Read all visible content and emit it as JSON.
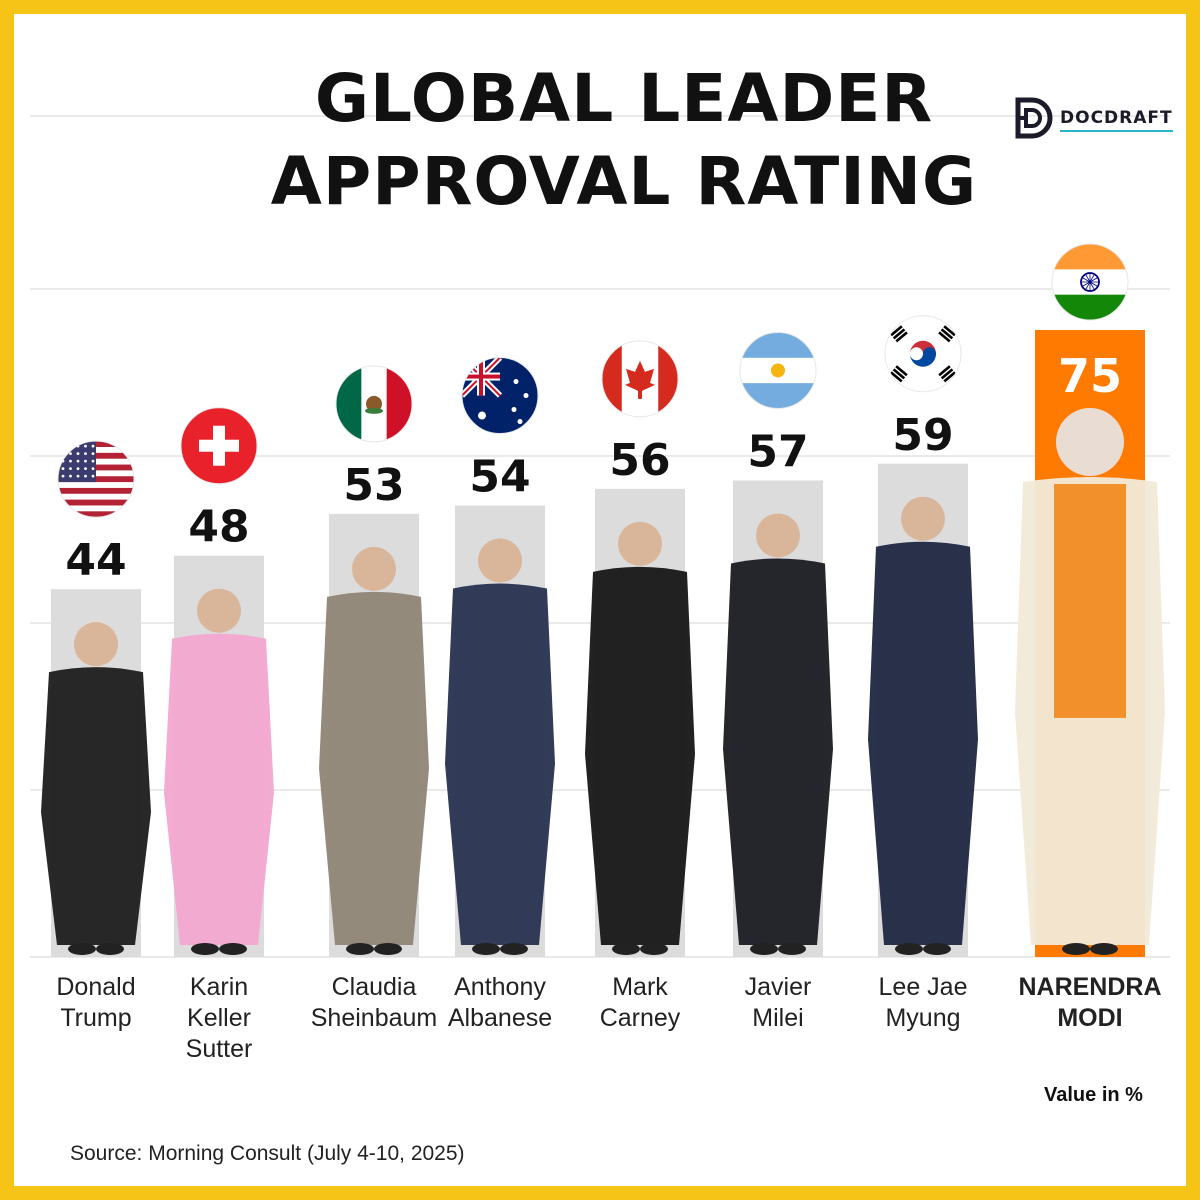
{
  "header": {
    "title_line1": "GLOBAL LEADER",
    "title_line2": "APPROVAL RATING",
    "brand": "DOCDRAFT",
    "brand_icon": "docdraft-logo-icon"
  },
  "footer": {
    "source": "Source: Morning Consult (July 4-10, 2025)",
    "unit_note": "Value in %"
  },
  "colors": {
    "frame": "#f6c416",
    "bar": "#dcdcdc",
    "highlight_bar": "#ff7a00",
    "text": "#111111"
  },
  "chart_data": {
    "type": "bar",
    "categories": [
      "Donald Trump",
      "Karin Keller Sutter",
      "Claudia Sheinbaum",
      "Anthony Albanese",
      "Mark Carney",
      "Javier Milei",
      "Lee Jae Myung",
      "NARENDRA MODI"
    ],
    "category_lines": [
      [
        "Donald",
        "Trump"
      ],
      [
        "Karin",
        "Keller",
        "Sutter"
      ],
      [
        "Claudia",
        "Sheinbaum"
      ],
      [
        "Anthony",
        "Albanese"
      ],
      [
        "Mark",
        "Carney"
      ],
      [
        "Javier",
        "Milei"
      ],
      [
        "Lee Jae",
        "Myung"
      ],
      [
        "NARENDRA",
        "MODI"
      ]
    ],
    "values": [
      44,
      48,
      53,
      54,
      56,
      57,
      59,
      75
    ],
    "flags": [
      "usa-flag-icon",
      "switzerland-flag-icon",
      "mexico-flag-icon",
      "australia-flag-icon",
      "canada-flag-icon",
      "argentina-flag-icon",
      "south-korea-flag-icon",
      "india-flag-icon"
    ],
    "highlight_index": 7,
    "ylim": [
      0,
      100
    ],
    "grid": true,
    "title": "GLOBAL LEADER APPROVAL RATING",
    "xlabel": "",
    "ylabel": ""
  }
}
